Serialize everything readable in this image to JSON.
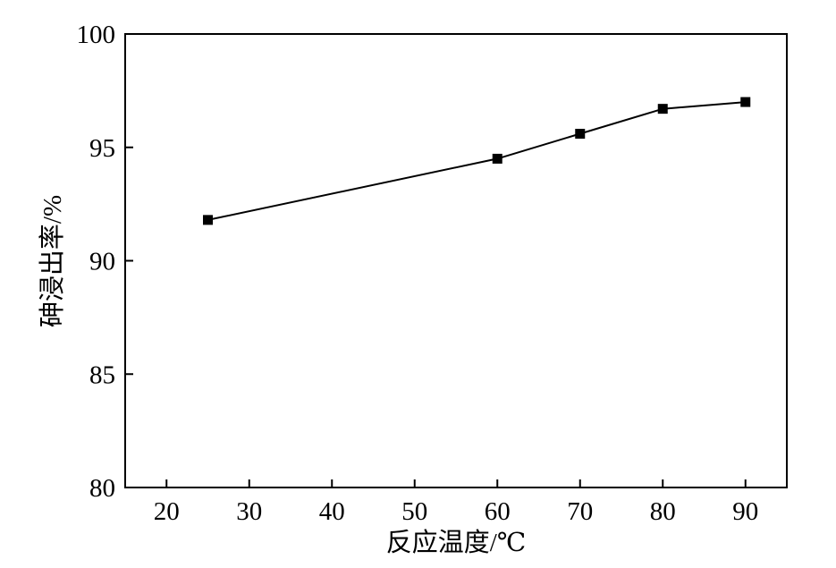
{
  "chart_data": {
    "type": "line",
    "title": "",
    "xlabel": "反应温度/℃",
    "ylabel": "砷浸出率/%",
    "xlim": [
      15,
      95
    ],
    "ylim": [
      80,
      100
    ],
    "x_ticks": [
      20,
      30,
      40,
      50,
      60,
      70,
      80,
      90
    ],
    "y_ticks": [
      80,
      85,
      90,
      95,
      100
    ],
    "grid": false,
    "legend": "none",
    "series": [
      {
        "marker": "square",
        "color": "#000000",
        "points": [
          {
            "x": 25,
            "y": 91.8
          },
          {
            "x": 60,
            "y": 94.5
          },
          {
            "x": 70,
            "y": 95.6
          },
          {
            "x": 80,
            "y": 96.7
          },
          {
            "x": 90,
            "y": 97.0
          }
        ]
      }
    ]
  }
}
